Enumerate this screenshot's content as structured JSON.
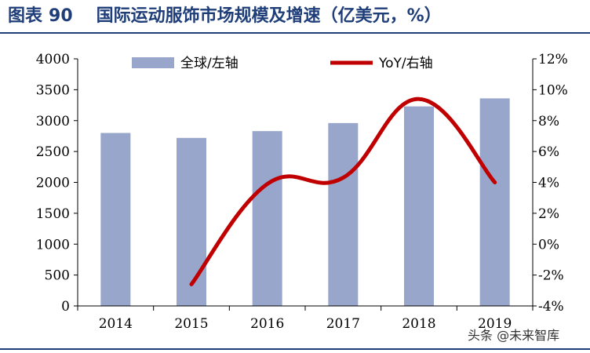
{
  "header": {
    "figure_label": "图表",
    "figure_number": "90",
    "title": "国际运动服饰市场规模及增速（亿美元，%）"
  },
  "watermark": "头条 @未来智库",
  "colors": {
    "bar": "#98a6cb",
    "line": "#c00000",
    "rule": "#1f3e79"
  },
  "chart_data": {
    "type": "bar",
    "categories": [
      "2014",
      "2015",
      "2016",
      "2017",
      "2018",
      "2019"
    ],
    "series": [
      {
        "name": "全球/左轴",
        "type": "bar",
        "axis": "left",
        "values": [
          2800,
          2720,
          2830,
          2960,
          3230,
          3360
        ]
      },
      {
        "name": "YoY/右轴",
        "type": "line",
        "axis": "right",
        "values": [
          null,
          -2.6,
          3.9,
          4.3,
          9.4,
          4.0
        ]
      }
    ],
    "ylim_left": [
      0,
      4000
    ],
    "yticks_left": [
      "0",
      "500",
      "1000",
      "1500",
      "2000",
      "2500",
      "3000",
      "3500",
      "4000"
    ],
    "ylim_right": [
      -4,
      12
    ],
    "yticks_right": [
      "-4%",
      "-2%",
      "0%",
      "2%",
      "4%",
      "6%",
      "8%",
      "10%",
      "12%"
    ],
    "legend": "top",
    "grid": false
  }
}
